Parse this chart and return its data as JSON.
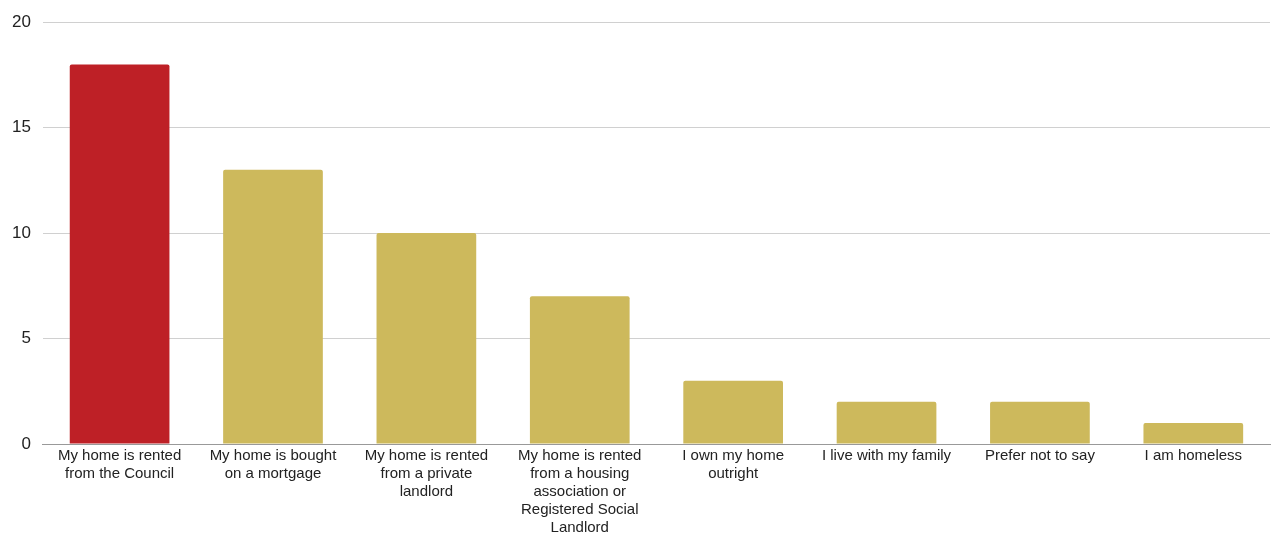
{
  "chart_data": {
    "type": "bar",
    "categories": [
      "My home is rented from the Council",
      "My home is bought on a mortgage",
      "My home is rented from a private landlord",
      "My home is rented from a housing association or Registered Social Landlord",
      "I own my home outright",
      "I live with my family",
      "Prefer not to say",
      "I am homeless"
    ],
    "values": [
      18,
      13,
      10,
      7,
      3,
      2,
      2,
      1
    ],
    "colors": [
      "#be2026",
      "#cdb95c",
      "#cdb95c",
      "#cdb95c",
      "#cdb95c",
      "#cdb95c",
      "#cdb95c",
      "#cdb95c"
    ],
    "ylim": [
      0,
      20
    ],
    "yticks": [
      0,
      5,
      10,
      15,
      20
    ],
    "grid": "y"
  }
}
